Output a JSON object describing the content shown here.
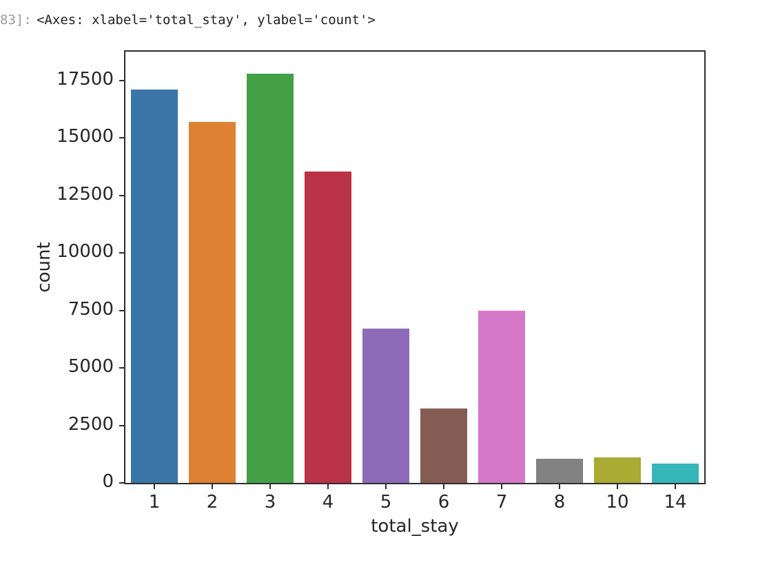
{
  "notebook": {
    "execution_label": "83]:",
    "output_text": "<Axes: xlabel='total_stay', ylabel='count'>"
  },
  "chart_data": {
    "type": "bar",
    "library_style": "seaborn-countplot",
    "title": "",
    "xlabel": "total_stay",
    "ylabel": "count",
    "categories": [
      "1",
      "2",
      "3",
      "4",
      "5",
      "6",
      "7",
      "8",
      "10",
      "14"
    ],
    "values": [
      17100,
      15700,
      17800,
      13550,
      6700,
      3250,
      7500,
      1050,
      1100,
      850
    ],
    "bar_colors": [
      "#3a76a8",
      "#dd8133",
      "#43a047",
      "#bb3349",
      "#8d6bb8",
      "#855c53",
      "#d678c8",
      "#828282",
      "#a9ab32",
      "#35b7b9"
    ],
    "yticks": [
      0,
      2500,
      5000,
      7500,
      10000,
      12500,
      15000,
      17500
    ],
    "ylim": [
      0,
      18750
    ],
    "grid": false,
    "legend": false,
    "frame_color": "#2e2e2e",
    "tick_label_color": "#262626"
  }
}
